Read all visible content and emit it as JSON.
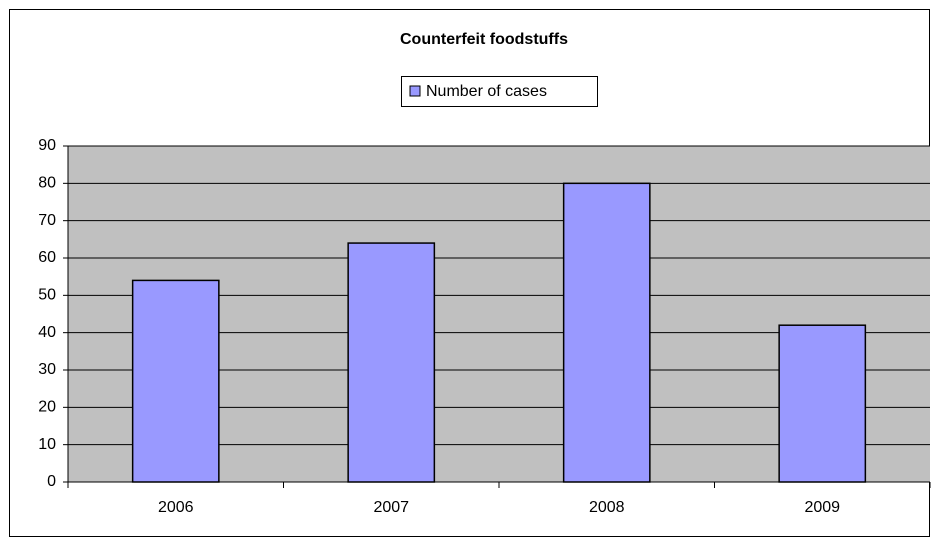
{
  "chart_data": {
    "type": "bar",
    "title": "Counterfeit foodstuffs",
    "categories": [
      "2006",
      "2007",
      "2008",
      "2009"
    ],
    "series": [
      {
        "name": "Number of cases",
        "color": "#9999ff",
        "values": [
          54,
          64,
          80,
          42
        ]
      }
    ],
    "ylim": [
      0,
      90
    ],
    "yticks": [
      0,
      10,
      20,
      30,
      40,
      50,
      60,
      70,
      80,
      90
    ],
    "grid": true,
    "plot_background": "#c0c0c0",
    "legend": "top"
  }
}
